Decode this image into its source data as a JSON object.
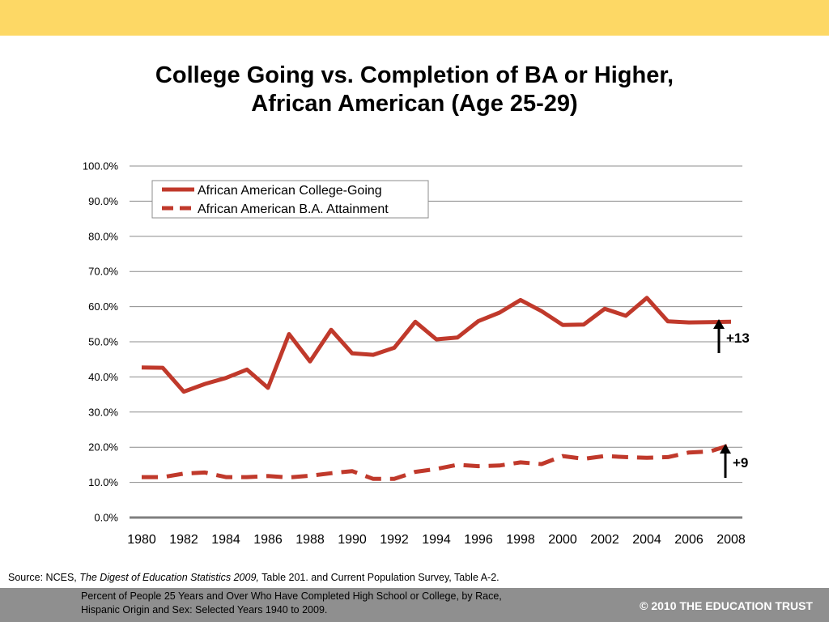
{
  "header": {
    "title_line1": "College Going vs. Completion of BA or Higher,",
    "title_line2": "African American (Age 25-29)"
  },
  "chart_data": {
    "type": "line",
    "title": "College Going vs. Completion of BA or Higher, African American (Age 25-29)",
    "xlabel": "",
    "ylabel": "",
    "xlim": [
      1980,
      2008
    ],
    "ylim": [
      0,
      100
    ],
    "x_ticks": [
      "1980",
      "1982",
      "1984",
      "1986",
      "1988",
      "1990",
      "1992",
      "1994",
      "1996",
      "1998",
      "2000",
      "2002",
      "2004",
      "2006",
      "2008"
    ],
    "y_ticks": [
      "0.0%",
      "10.0%",
      "20.0%",
      "30.0%",
      "40.0%",
      "50.0%",
      "60.0%",
      "70.0%",
      "80.0%",
      "90.0%",
      "100.0%"
    ],
    "grid": true,
    "legend_position": "top-left",
    "x": [
      1980,
      1981,
      1982,
      1983,
      1984,
      1985,
      1986,
      1987,
      1988,
      1989,
      1990,
      1991,
      1992,
      1993,
      1994,
      1995,
      1996,
      1997,
      1998,
      1999,
      2000,
      2001,
      2002,
      2003,
      2004,
      2005,
      2006,
      2007,
      2008
    ],
    "series": [
      {
        "name": "African American College-Going",
        "style": "solid",
        "color": "#c0392b",
        "values": [
          42.7,
          42.6,
          35.8,
          38.0,
          39.7,
          42.1,
          36.9,
          52.2,
          44.4,
          53.4,
          46.7,
          46.3,
          48.3,
          55.7,
          50.7,
          51.2,
          55.9,
          58.3,
          61.9,
          58.7,
          54.8,
          54.9,
          59.4,
          57.4,
          62.5,
          55.8,
          55.5,
          55.6,
          55.7
        ]
      },
      {
        "name": "African American B.A. Attainment",
        "style": "dashed",
        "color": "#c0392b",
        "values": [
          11.5,
          11.5,
          12.5,
          12.8,
          11.5,
          11.5,
          11.8,
          11.4,
          11.9,
          12.6,
          13.2,
          11.0,
          11.0,
          13.0,
          13.8,
          15.0,
          14.6,
          14.8,
          15.7,
          15.2,
          17.5,
          16.7,
          17.5,
          17.2,
          17.0,
          17.2,
          18.5,
          18.8,
          20.7
        ]
      }
    ],
    "annotations": [
      {
        "text": "+13",
        "x": 2008,
        "y": 55.7,
        "arrow": "up"
      },
      {
        "text": "+9",
        "x": 2008,
        "y": 20.7,
        "arrow": "up"
      }
    ]
  },
  "source": {
    "prefix": "Source: NCES, ",
    "italic": "The Digest of Education Statistics 2009,",
    "suffix": " Table 201. and Current Population Survey, Table A-2.",
    "detail_line1": "Percent of People 25 Years and Over Who Have Completed High School or College, by Race,",
    "detail_line2": "Hispanic Origin and Sex: Selected Years 1940 to 2009."
  },
  "footer": {
    "copyright": "© 2010 THE EDUCATION TRUST"
  },
  "colors": {
    "top_band": "#fdd865",
    "footer_band": "#8f8f8f",
    "series": "#c0392b"
  }
}
